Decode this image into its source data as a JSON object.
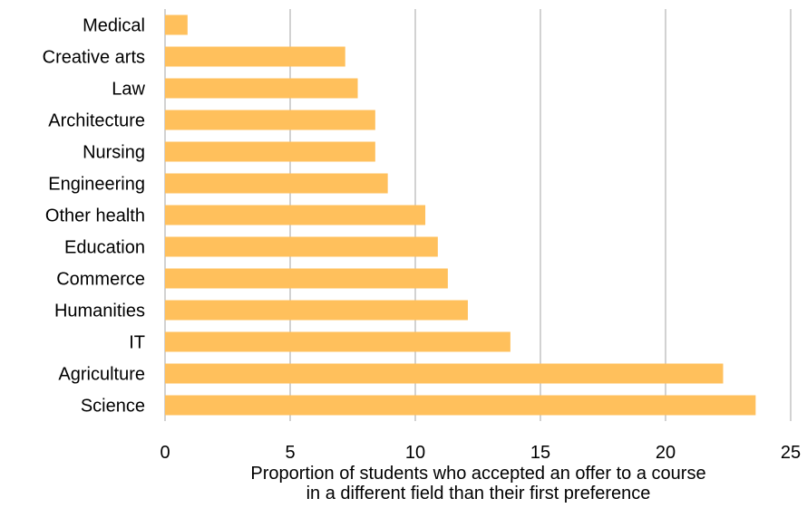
{
  "chart_data": {
    "type": "bar",
    "orientation": "horizontal",
    "categories": [
      "Medical",
      "Creative arts",
      "Law",
      "Architecture",
      "Nursing",
      "Engineering",
      "Other health",
      "Education",
      "Commerce",
      "Humanities",
      "IT",
      "Agriculture",
      "Science"
    ],
    "values": [
      0.9,
      7.2,
      7.7,
      8.4,
      8.4,
      8.9,
      10.4,
      10.9,
      11.3,
      12.1,
      13.8,
      22.3,
      23.6
    ],
    "xlabel": "Proportion of students who accepted an offer to a course in a different field than their first preference",
    "xlabel_lines": [
      "Proportion of students who accepted an offer to a course",
      "in a different field than their first preference"
    ],
    "xlim": [
      0,
      25
    ],
    "xticks": [
      0,
      5,
      10,
      15,
      20,
      25
    ],
    "grid": "vertical",
    "bar_color": "#FFC05C",
    "grid_color": "#A6A6A6"
  }
}
